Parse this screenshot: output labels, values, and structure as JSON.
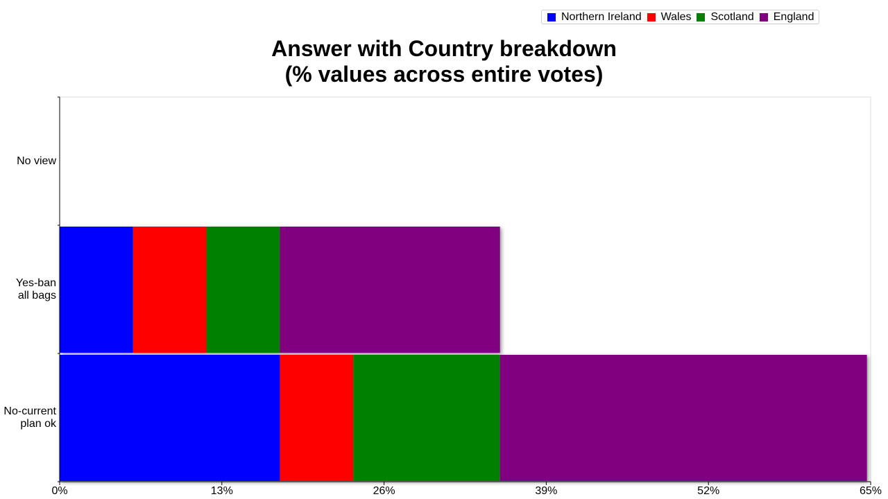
{
  "chart_data": {
    "type": "stacked-horizontal-bar",
    "title": "Answer with Country breakdown\n(% values across entire votes)",
    "categories": [
      "No view",
      "Yes-ban\nall bags",
      "No-current\nplan ok"
    ],
    "series": [
      {
        "name": "Northern Ireland",
        "color": "#0000ff",
        "values": [
          0,
          5.88,
          17.65
        ]
      },
      {
        "name": "Wales",
        "color": "#ff0000",
        "values": [
          0,
          5.88,
          5.88
        ]
      },
      {
        "name": "Scotland",
        "color": "#008000",
        "values": [
          0,
          5.88,
          11.76
        ]
      },
      {
        "name": "England",
        "color": "#800080",
        "values": [
          0,
          17.65,
          29.41
        ]
      }
    ],
    "xlim": [
      0,
      65
    ],
    "xticks": [
      {
        "value": 0,
        "label": "0%"
      },
      {
        "value": 13,
        "label": "13%"
      },
      {
        "value": 26,
        "label": "26%"
      },
      {
        "value": 39,
        "label": "39%"
      },
      {
        "value": 52,
        "label": "52%"
      },
      {
        "value": 65,
        "label": "65%"
      }
    ],
    "legend": "top-right"
  }
}
